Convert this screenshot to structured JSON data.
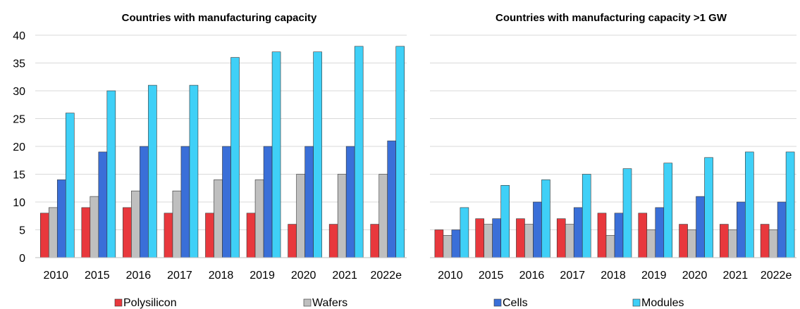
{
  "chart_data": [
    {
      "type": "bar",
      "title": "Countries with manufacturing capacity",
      "xlabel": "",
      "ylabel": "",
      "ylim": [
        0,
        40
      ],
      "yticks": [
        "0",
        "5",
        "10",
        "15",
        "20",
        "25",
        "30",
        "35",
        "40"
      ],
      "grid": true,
      "categories": [
        "2010",
        "2015",
        "2016",
        "2017",
        "2018",
        "2019",
        "2020",
        "2021",
        "2022e"
      ],
      "series": [
        {
          "name": "Polysilicon",
          "values": [
            8,
            9,
            9,
            8,
            8,
            8,
            6,
            6,
            6
          ]
        },
        {
          "name": "Wafers",
          "values": [
            9,
            11,
            12,
            12,
            14,
            14,
            15,
            15,
            15
          ]
        },
        {
          "name": "Cells",
          "values": [
            14,
            19,
            20,
            20,
            20,
            20,
            20,
            20,
            21
          ]
        },
        {
          "name": "Modules",
          "values": [
            26,
            30,
            31,
            31,
            36,
            37,
            37,
            38,
            38
          ]
        }
      ]
    },
    {
      "type": "bar",
      "title": "Countries with manufacturing capacity >1 GW",
      "xlabel": "",
      "ylabel": "",
      "ylim": [
        0,
        40
      ],
      "grid": true,
      "categories": [
        "2010",
        "2015",
        "2016",
        "2017",
        "2018",
        "2019",
        "2020",
        "2021",
        "2022e"
      ],
      "series": [
        {
          "name": "Polysilicon",
          "values": [
            5,
            7,
            7,
            7,
            8,
            8,
            6,
            6,
            6
          ]
        },
        {
          "name": "Wafers",
          "values": [
            4,
            6,
            6,
            6,
            4,
            5,
            5,
            5,
            5
          ]
        },
        {
          "name": "Cells",
          "values": [
            5,
            7,
            10,
            9,
            8,
            9,
            11,
            10,
            10
          ]
        },
        {
          "name": "Modules",
          "values": [
            9,
            13,
            14,
            15,
            16,
            17,
            18,
            19,
            19
          ]
        }
      ]
    }
  ],
  "legend": {
    "position": "bottom",
    "items": [
      {
        "label": "Polysilicon",
        "color": "#e8383d"
      },
      {
        "label": "Wafers",
        "color": "#bfbfbf"
      },
      {
        "label": "Cells",
        "color": "#3a6fd8"
      },
      {
        "label": "Modules",
        "color": "#3fd0f7"
      }
    ]
  }
}
